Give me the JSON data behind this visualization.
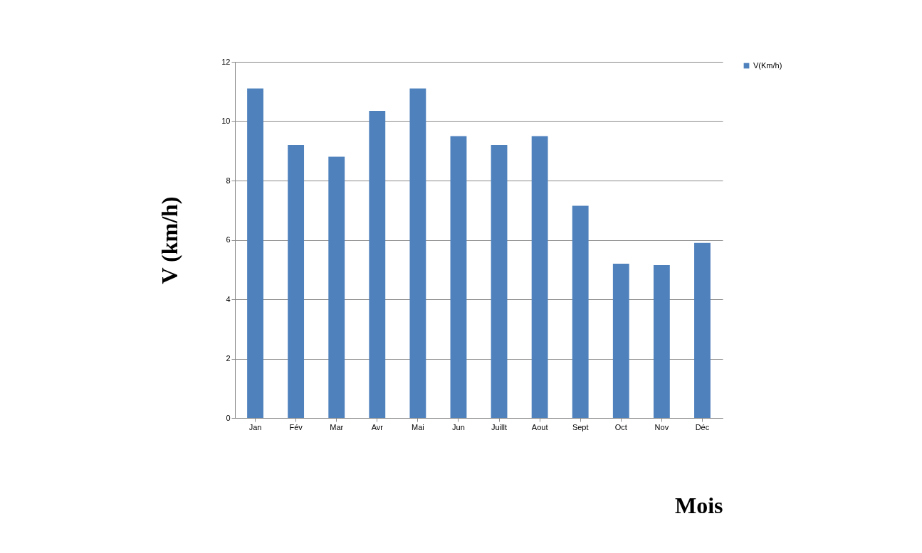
{
  "chart_data": {
    "type": "bar",
    "xlabel": "Mois",
    "ylabel": "V (km/h)",
    "categories": [
      "Jan",
      "Fév",
      "Mar",
      "Avr",
      "Mai",
      "Jun",
      "Juillt",
      "Aout",
      "Sept",
      "Oct",
      "Nov",
      "Déc"
    ],
    "series": [
      {
        "name": "V(Km/h)",
        "color": "#4f81bd",
        "values": [
          11.1,
          9.2,
          8.8,
          10.35,
          11.1,
          9.5,
          9.2,
          9.5,
          7.15,
          5.2,
          5.15,
          5.9
        ]
      }
    ],
    "ylim": [
      0,
      12
    ],
    "yticks": [
      0,
      2,
      4,
      6,
      8,
      10,
      12
    ],
    "grid": "y",
    "legend": "right"
  }
}
